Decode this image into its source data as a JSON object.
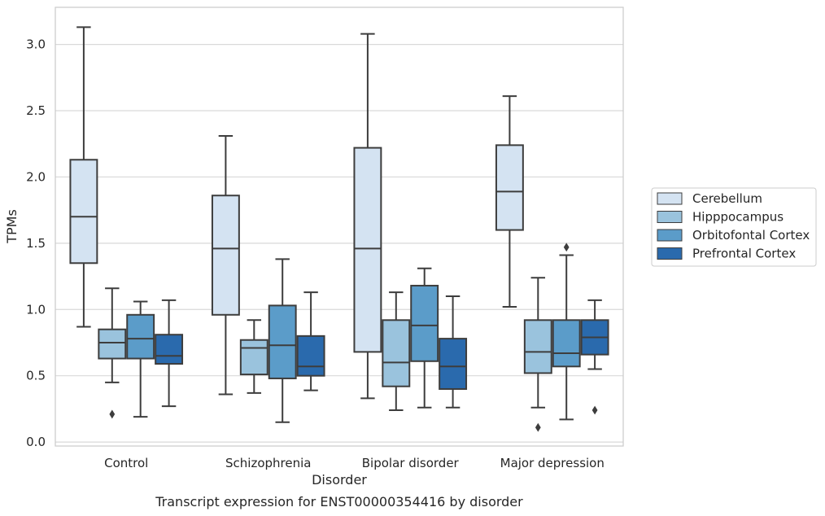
{
  "chart_data": {
    "type": "box",
    "title": "",
    "xlabel": "Disorder",
    "ylabel": "TPMs",
    "caption": "Transcript expression for ENST00000354416 by disorder",
    "ylim": [
      -0.03,
      3.28
    ],
    "yticks": [
      "0.0",
      "0.5",
      "1.0",
      "1.5",
      "2.0",
      "2.5",
      "3.0"
    ],
    "ytick_values": [
      0.0,
      0.5,
      1.0,
      1.5,
      2.0,
      2.5,
      3.0
    ],
    "grid": "horizontal",
    "legend_position": "right",
    "categories": [
      "Control",
      "Schizophrenia",
      "Bipolar disorder",
      "Major depression"
    ],
    "series": [
      {
        "name": "Cerebellum",
        "color": "#d4e3f2",
        "boxes": [
          {
            "whisker_low": 0.87,
            "q1": 1.35,
            "median": 1.7,
            "q3": 2.13,
            "whisker_high": 3.13,
            "outliers": []
          },
          {
            "whisker_low": 0.36,
            "q1": 0.96,
            "median": 1.46,
            "q3": 1.86,
            "whisker_high": 2.31,
            "outliers": []
          },
          {
            "whisker_low": 0.33,
            "q1": 0.68,
            "median": 1.46,
            "q3": 2.22,
            "whisker_high": 3.08,
            "outliers": []
          },
          {
            "whisker_low": 1.02,
            "q1": 1.6,
            "median": 1.89,
            "q3": 2.24,
            "whisker_high": 2.61,
            "outliers": []
          }
        ]
      },
      {
        "name": "Hipppocampus",
        "color": "#9ac3dd",
        "boxes": [
          {
            "whisker_low": 0.45,
            "q1": 0.63,
            "median": 0.75,
            "q3": 0.85,
            "whisker_high": 1.16,
            "outliers": [
              0.21
            ]
          },
          {
            "whisker_low": 0.37,
            "q1": 0.51,
            "median": 0.71,
            "q3": 0.77,
            "whisker_high": 0.92,
            "outliers": []
          },
          {
            "whisker_low": 0.24,
            "q1": 0.42,
            "median": 0.6,
            "q3": 0.92,
            "whisker_high": 1.13,
            "outliers": []
          },
          {
            "whisker_low": 0.26,
            "q1": 0.52,
            "median": 0.68,
            "q3": 0.92,
            "whisker_high": 1.24,
            "outliers": [
              0.11
            ]
          }
        ]
      },
      {
        "name": "Orbitofontal Cortex",
        "color": "#5b9cc9",
        "boxes": [
          {
            "whisker_low": 0.19,
            "q1": 0.63,
            "median": 0.78,
            "q3": 0.96,
            "whisker_high": 1.06,
            "outliers": []
          },
          {
            "whisker_low": 0.15,
            "q1": 0.48,
            "median": 0.73,
            "q3": 1.03,
            "whisker_high": 1.38,
            "outliers": []
          },
          {
            "whisker_low": 0.26,
            "q1": 0.61,
            "median": 0.88,
            "q3": 1.18,
            "whisker_high": 1.31,
            "outliers": []
          },
          {
            "whisker_low": 0.17,
            "q1": 0.57,
            "median": 0.67,
            "q3": 0.92,
            "whisker_high": 1.41,
            "outliers": [
              1.47
            ]
          }
        ]
      },
      {
        "name": "Prefrontal Cortex",
        "color": "#2a6aad",
        "boxes": [
          {
            "whisker_low": 0.27,
            "q1": 0.59,
            "median": 0.65,
            "q3": 0.81,
            "whisker_high": 1.07,
            "outliers": []
          },
          {
            "whisker_low": 0.39,
            "q1": 0.5,
            "median": 0.57,
            "q3": 0.8,
            "whisker_high": 1.13,
            "outliers": []
          },
          {
            "whisker_low": 0.26,
            "q1": 0.4,
            "median": 0.57,
            "q3": 0.78,
            "whisker_high": 1.1,
            "outliers": []
          },
          {
            "whisker_low": 0.55,
            "q1": 0.66,
            "median": 0.79,
            "q3": 0.92,
            "whisker_high": 1.07,
            "outliers": [
              0.24
            ]
          }
        ]
      }
    ]
  }
}
